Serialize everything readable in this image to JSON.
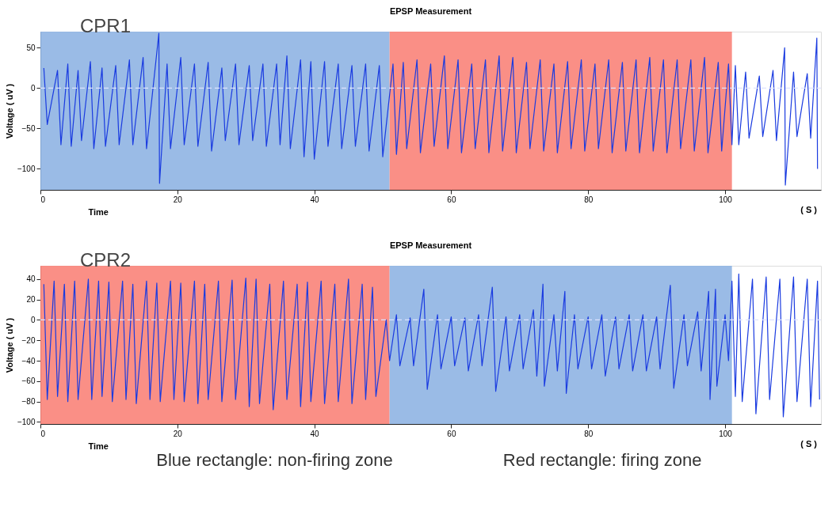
{
  "chart_data": [
    {
      "type": "line",
      "title": "EPSP Measurement",
      "xlabel": "Time",
      "ylabel": "Voltage ( uV )",
      "annotations": [
        "CPR1",
        "( S )"
      ],
      "xlim": [
        0,
        114
      ],
      "ylim": [
        -126,
        70
      ],
      "xticks": [
        0,
        20,
        40,
        60,
        80,
        100
      ],
      "yticks": [
        -100,
        -50,
        0,
        50
      ],
      "grid": false,
      "bands": [
        {
          "axis": "x",
          "from": 0,
          "to": 51,
          "color": "#8fb4e3"
        },
        {
          "axis": "x",
          "from": 51,
          "to": 101,
          "color": "#f98379"
        }
      ],
      "ref_lines": [
        {
          "axis": "y",
          "value": 0,
          "color": "#dde3ff",
          "line_style": "dashed"
        }
      ],
      "series": [
        {
          "color": "#1a3be0",
          "line_style": "solid",
          "x": [
            0.5,
            1.0,
            2.5,
            3.0,
            4.0,
            4.5,
            5.5,
            6,
            7.3,
            7.8,
            9,
            9.5,
            11,
            11.5,
            13,
            13.5,
            15,
            15.5,
            17.3,
            17.4,
            18.5,
            19,
            20.5,
            21,
            22.5,
            23,
            24.5,
            25,
            26.5,
            27,
            28.5,
            29,
            30.5,
            31,
            32.5,
            33,
            34.5,
            35,
            36,
            36.5,
            38,
            38.5,
            39.5,
            40,
            41.5,
            42,
            43.5,
            44,
            45.5,
            46,
            47.5,
            48,
            49.5,
            50,
            51.5,
            52,
            53,
            53.5,
            55,
            55.5,
            57,
            57.5,
            59,
            59.5,
            61,
            61.5,
            63,
            63.5,
            65,
            65.5,
            67,
            67.5,
            69,
            69.5,
            71,
            71.5,
            73,
            73.5,
            75,
            75.5,
            77,
            77.5,
            79,
            79.5,
            81,
            81.5,
            83,
            83.5,
            85,
            85.5,
            87,
            87.5,
            89,
            89.5,
            91,
            91.5,
            93,
            93.5,
            95,
            95.5,
            97,
            97.5,
            99,
            99.5,
            100.5,
            101,
            101.5,
            102,
            103,
            103.5,
            105,
            105.5,
            107,
            107.5,
            108.7,
            108.8,
            110,
            110.5,
            112,
            112.5,
            113.4,
            113.5
          ],
          "values": [
            25,
            -45,
            22,
            -70,
            30,
            -72,
            22,
            -65,
            33,
            -75,
            25,
            -72,
            28,
            -70,
            35,
            -70,
            38,
            -75,
            68,
            -118,
            30,
            -75,
            38,
            -70,
            30,
            -72,
            32,
            -78,
            25,
            -65,
            30,
            -70,
            28,
            -65,
            30,
            -72,
            30,
            -70,
            40,
            -75,
            35,
            -85,
            33,
            -88,
            33,
            -72,
            30,
            -75,
            28,
            -72,
            30,
            -78,
            28,
            -85,
            30,
            -82,
            32,
            -75,
            35,
            -80,
            30,
            -72,
            40,
            -75,
            35,
            -80,
            30,
            -75,
            35,
            -80,
            40,
            -78,
            38,
            -80,
            32,
            -75,
            35,
            -78,
            30,
            -80,
            33,
            -75,
            35,
            -78,
            30,
            -75,
            35,
            -80,
            32,
            -78,
            35,
            -80,
            38,
            -78,
            35,
            -80,
            35,
            -75,
            35,
            -78,
            38,
            -80,
            32,
            -78,
            30,
            -70,
            28,
            -70,
            20,
            -62,
            15,
            -60,
            22,
            -65,
            50,
            -120,
            20,
            -60,
            18,
            -62,
            62,
            -100
          ]
        }
      ]
    },
    {
      "type": "line",
      "title": "EPSP Measurement",
      "xlabel": "Time",
      "ylabel": "Voltage ( uV )",
      "annotations": [
        "CPR2",
        "( S )",
        "Blue rectangle: non-firing zone",
        "Red rectangle: firing zone"
      ],
      "xlim": [
        0,
        114
      ],
      "ylim": [
        -102,
        53
      ],
      "xticks": [
        0,
        20,
        40,
        60,
        80,
        100
      ],
      "yticks": [
        -100,
        -80,
        -60,
        -40,
        -20,
        0,
        20,
        40
      ],
      "grid": false,
      "bands": [
        {
          "axis": "x",
          "from": 0,
          "to": 51,
          "color": "#f98379"
        },
        {
          "axis": "x",
          "from": 51,
          "to": 101,
          "color": "#8fb4e3"
        }
      ],
      "ref_lines": [
        {
          "axis": "y",
          "value": 0,
          "color": "#dde3ff",
          "line_style": "dashed"
        }
      ],
      "series": [
        {
          "color": "#1a3be0",
          "line_style": "solid",
          "x": [
            0.5,
            1,
            2,
            2.5,
            3.5,
            4,
            5,
            5.5,
            7,
            7.5,
            8.5,
            9,
            10,
            10.5,
            12,
            12.5,
            13.5,
            14,
            15.5,
            16,
            17,
            17.5,
            19,
            19.5,
            20.5,
            21,
            22.5,
            23,
            24,
            24.5,
            26,
            26.5,
            28,
            28.5,
            30,
            30.5,
            31.5,
            32,
            33.5,
            34,
            35.5,
            36,
            37.5,
            38,
            39,
            39.5,
            41,
            41.5,
            43,
            43.5,
            45,
            45.5,
            47,
            47.5,
            48.5,
            49,
            50.5,
            51,
            52,
            52.5,
            54,
            54.5,
            56,
            56.5,
            58,
            58.5,
            60,
            60.5,
            62,
            62.5,
            64,
            64.5,
            66,
            66.5,
            68,
            68.5,
            70,
            70.5,
            72,
            72.5,
            73.4,
            73.6,
            75,
            75.5,
            76.6,
            76.8,
            78,
            78.5,
            80,
            80.5,
            82,
            82.5,
            84,
            84.5,
            86,
            86.5,
            88,
            88.5,
            90,
            90.5,
            92,
            92.5,
            94,
            94.5,
            96,
            96.5,
            97.6,
            97.8,
            98.6,
            98.8,
            100,
            100.5,
            101,
            101.5,
            102,
            102.5,
            104,
            104.5,
            106,
            106.5,
            108,
            108.5,
            110,
            110.5,
            112,
            112.5,
            113.5,
            113.8
          ],
          "values": [
            35,
            -78,
            38,
            -75,
            35,
            -80,
            38,
            -78,
            40,
            -78,
            38,
            -75,
            37,
            -80,
            38,
            -78,
            35,
            -82,
            38,
            -78,
            36,
            -80,
            38,
            -78,
            36,
            -80,
            38,
            -82,
            35,
            -78,
            38,
            -80,
            39,
            -78,
            41,
            -85,
            40,
            -82,
            35,
            -88,
            38,
            -78,
            35,
            -85,
            37,
            -80,
            38,
            -82,
            35,
            -80,
            40,
            -82,
            35,
            -78,
            32,
            -75,
            0,
            -40,
            5,
            -45,
            2,
            -45,
            30,
            -68,
            5,
            -48,
            3,
            -45,
            2,
            -50,
            5,
            -45,
            32,
            -70,
            3,
            -50,
            5,
            -48,
            10,
            -55,
            35,
            -65,
            5,
            -50,
            28,
            -72,
            5,
            -48,
            3,
            -48,
            5,
            -55,
            3,
            -48,
            5,
            -50,
            5,
            -50,
            3,
            -48,
            34,
            -67,
            5,
            -45,
            8,
            -50,
            28,
            -78,
            30,
            -65,
            5,
            -40,
            38,
            -75,
            45,
            -80,
            40,
            -92,
            42,
            -78,
            40,
            -95,
            42,
            -80,
            40,
            -85,
            38,
            -78
          ]
        }
      ]
    }
  ]
}
